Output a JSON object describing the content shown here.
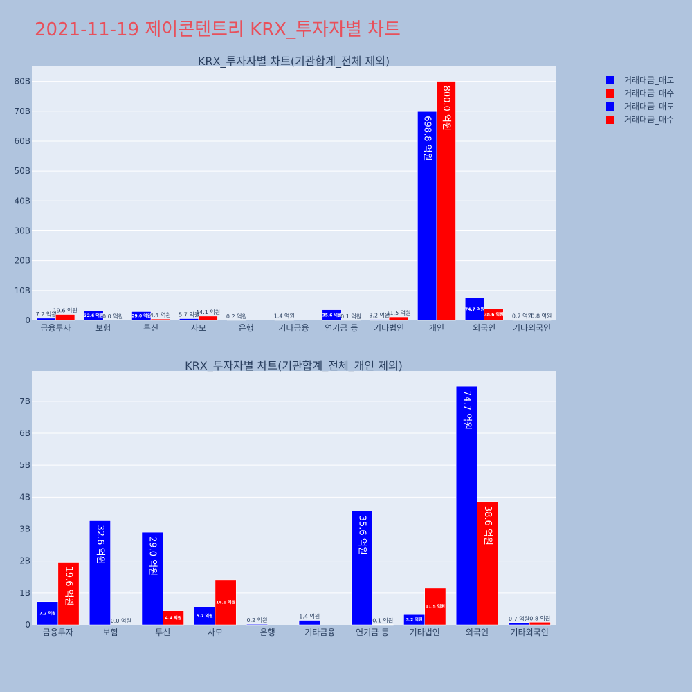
{
  "title": "2021-11-19 제이콘텐트리 KRX_투자자별 차트",
  "legend": {
    "items": [
      {
        "label": "거래대금_매도",
        "color": "#0000ff"
      },
      {
        "label": "거래대금_매수",
        "color": "#ff0000"
      },
      {
        "label": "거래대금_매도",
        "color": "#0000ff"
      },
      {
        "label": "거래대금_매수",
        "color": "#ff0000"
      }
    ]
  },
  "chart_data": [
    {
      "type": "bar",
      "title": "KRX_투자자별 차트(기관합계_전체 제외)",
      "categories": [
        "금융투자",
        "보험",
        "투신",
        "사모",
        "은행",
        "기타금융",
        "연기금 등",
        "기타법인",
        "개인",
        "외국인",
        "기타외국인"
      ],
      "series": [
        {
          "name": "거래대금_매도",
          "color": "#0000ff",
          "values": [
            0.72,
            3.26,
            2.9,
            0.57,
            0.02,
            0.14,
            3.56,
            0.32,
            69.88,
            7.47,
            0.07
          ],
          "labels": [
            "7.2 억원",
            "32.6 억원",
            "29.0 억원",
            "5.7 억원",
            "0.2 억원",
            "1.4 억원",
            "35.6 억원",
            "3.2 억원",
            "698.8 억원",
            "74.7 억원",
            "0.7 억원"
          ]
        },
        {
          "name": "거래대금_매수",
          "color": "#ff0000",
          "values": [
            1.96,
            0.0,
            0.44,
            1.41,
            0.0,
            0.0,
            0.01,
            1.15,
            80.0,
            3.86,
            0.08
          ],
          "labels": [
            "19.6 억원",
            "0.0 억원",
            "4.4 억원",
            "14.1 억원",
            "",
            "",
            "0.1 억원",
            "11.5 억원",
            "800.0 억원",
            "38.6 억원",
            "0.8 억원"
          ]
        }
      ],
      "ylim": [
        0,
        85
      ],
      "yticks": [
        0,
        10,
        20,
        30,
        40,
        50,
        60,
        70,
        80
      ],
      "ytick_labels": [
        "0",
        "10B",
        "20B",
        "30B",
        "40B",
        "50B",
        "60B",
        "70B",
        "80B"
      ],
      "grid": true
    },
    {
      "type": "bar",
      "title": "KRX_투자자별 차트(기관합계_전체_개인 제외)",
      "categories": [
        "금융투자",
        "보험",
        "투신",
        "사모",
        "은행",
        "기타금융",
        "연기금 등",
        "기타법인",
        "외국인",
        "기타외국인"
      ],
      "series": [
        {
          "name": "거래대금_매도",
          "color": "#0000ff",
          "values": [
            0.72,
            3.26,
            2.9,
            0.57,
            0.02,
            0.14,
            3.56,
            0.32,
            7.47,
            0.07
          ],
          "labels": [
            "7.2 억원",
            "32.6 억원",
            "29.0 억원",
            "5.7 억원",
            "0.2 억원",
            "1.4 억원",
            "35.6 억원",
            "3.2 억원",
            "74.7 억원",
            "0.7 억원"
          ]
        },
        {
          "name": "거래대금_매수",
          "color": "#ff0000",
          "values": [
            1.96,
            0.0,
            0.44,
            1.41,
            0.0,
            0.0,
            0.01,
            1.15,
            3.86,
            0.08
          ],
          "labels": [
            "19.6 억원",
            "0.0 억원",
            "4.4 억원",
            "14.1 억원",
            "",
            "",
            "0.1 억원",
            "11.5 억원",
            "38.6 억원",
            "0.8 억원"
          ]
        }
      ],
      "ylim": [
        0,
        7.95
      ],
      "yticks": [
        0,
        1,
        2,
        3,
        4,
        5,
        6,
        7
      ],
      "ytick_labels": [
        "0",
        "1B",
        "2B",
        "3B",
        "4B",
        "5B",
        "6B",
        "7B"
      ],
      "grid": true
    }
  ]
}
